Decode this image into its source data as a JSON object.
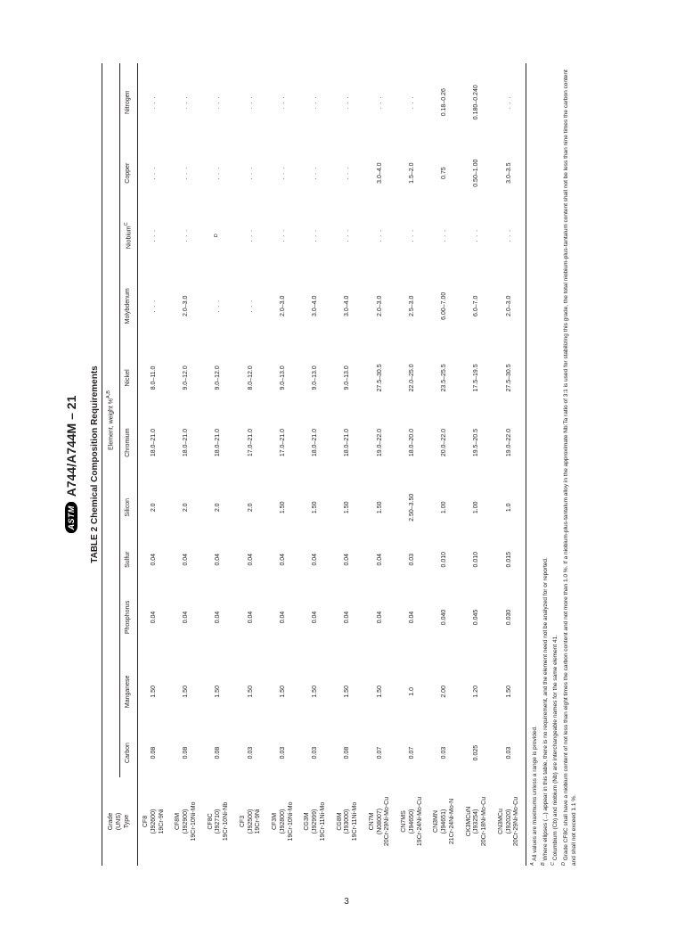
{
  "standard": "A744/A744M – 21",
  "table_title": "TABLE 2 Chemical Composition Requirements",
  "grade_header": "Grade\n(UNS)\nType",
  "element_header": "Element, weight %",
  "element_header_sup": "A,B",
  "cols": [
    "Carbon",
    "Manganese",
    "Phosphorus",
    "Sulfur",
    "Silicon",
    "Chromium",
    "Nickel",
    "Molybdenum",
    "Niobium",
    "Copper",
    "Nitrogen"
  ],
  "niobium_sup": "C",
  "ellipsis": ". . .",
  "rows": [
    {
      "code": "CF8",
      "uns": "(J92600)",
      "type": "19Cr-9Ni",
      "v": [
        "0.08",
        "1.50",
        "0.04",
        "0.04",
        "2.0",
        "18.0–21.0",
        "8.0–11.0",
        ". . .",
        ". . .",
        ". . .",
        ". . ."
      ]
    },
    {
      "code": "CF8M",
      "uns": "(J92900)",
      "type": "19Cr-10Ni-Mo",
      "v": [
        "0.08",
        "1.50",
        "0.04",
        "0.04",
        "2.0",
        "18.0–21.0",
        "9.0–12.0",
        "2.0–3.0",
        ". . .",
        ". . .",
        ". . ."
      ]
    },
    {
      "code": "CF8C",
      "uns": "(J92710)",
      "type": "19Cr-10Ni-Nb",
      "v": [
        "0.08",
        "1.50",
        "0.04",
        "0.04",
        "2.0",
        "18.0–21.0",
        "9.0–12.0",
        ". . .",
        "D",
        ". . .",
        ". . ."
      ]
    },
    {
      "code": "CF3",
      "uns": "(J92500)",
      "type": "19Cr-9Ni",
      "v": [
        "0.03",
        "1.50",
        "0.04",
        "0.04",
        "2.0",
        "17.0–21.0",
        "8.0–12.0",
        ". . .",
        ". . .",
        ". . .",
        ". . ."
      ]
    },
    {
      "code": "CF3M",
      "uns": "(J92800)",
      "type": "19Cr-10Ni-Mo",
      "v": [
        "0.03",
        "1.50",
        "0.04",
        "0.04",
        "1.50",
        "17.0–21.0",
        "9.0–13.0",
        "2.0–3.0",
        ". . .",
        ". . .",
        ". . ."
      ]
    },
    {
      "code": "CG3M",
      "uns": "(J92999)",
      "type": "19Cr-11Ni-Mo",
      "v": [
        "0.03",
        "1.50",
        "0.04",
        "0.04",
        "1.50",
        "18.0–21.0",
        "9.0–13.0",
        "3.0–4.0",
        ". . .",
        ". . .",
        ". . ."
      ]
    },
    {
      "code": "CG8M",
      "uns": "(J93000)",
      "type": "19Cr-11Ni-Mo",
      "v": [
        "0.08",
        "1.50",
        "0.04",
        "0.04",
        "1.50",
        "18.0–21.0",
        "9.0–13.0",
        "3.0–4.0",
        ". . .",
        ". . .",
        ". . ."
      ]
    },
    {
      "code": "CN7M",
      "uns": "(N08007)",
      "type": "20Cr-29Ni-Mo-Cu",
      "v": [
        "0.07",
        "1.50",
        "0.04",
        "0.04",
        "1.50",
        "19.0–22.0",
        "27.5–30.5",
        "2.0–3.0",
        ". . .",
        "3.0–4.0",
        ". . ."
      ]
    },
    {
      "code": "CN7MS",
      "uns": "(J94650)",
      "type": "19Cr-24Ni-Mo-Cu",
      "v": [
        "0.07",
        "1.0",
        "0.04",
        "0.03",
        "2.50–3.50",
        "18.0–20.0",
        "22.0–25.0",
        "2.5–3.0",
        ". . .",
        "1.5–2.0",
        ". . ."
      ]
    },
    {
      "code": "CN3MN",
      "uns": "(J94651)",
      "type": "21Cr-24Ni-Mo-N",
      "v": [
        "0.03",
        "2.00",
        "0.040",
        "0.010",
        "1.00",
        "20.0–22.0",
        "23.5–25.5",
        "6.00–7.00",
        ". . .",
        "0.75",
        "0.18–0.26"
      ]
    },
    {
      "code": "CK3MCuN",
      "uns": "(J93254)",
      "type": "20Cr-18Ni-Mo-Cu",
      "v": [
        "0.025",
        "1.20",
        "0.045",
        "0.010",
        "1.00",
        "19.5–20.5",
        "17.5–19.5",
        "6.0–7.0",
        ". . .",
        "0.50–1.00",
        "0.180–0.240"
      ]
    },
    {
      "code": "CN3MCu",
      "uns": "(J92020)",
      "type": "20Cr-29Ni-Mo-Cu",
      "v": [
        "0.03",
        "1.50",
        "0.030",
        "0.015",
        "1.0",
        "19.0–22.0",
        "27.5–30.5",
        "2.0–3.0",
        ". . .",
        "3.0–3.5",
        ". . ."
      ]
    }
  ],
  "footnotes": {
    "A": "All values are maximums unless a range is provided.",
    "B": "Where ellipses (...) appear in this table, there is no requirement, and the element need not be analyzed for or reported.",
    "C": "Columbium (Cb) and niobium (Nb) are interchangeable names for the same element 41.",
    "D": "Grade CF8C shall have a niobium content of not less than eight times the carbon content and not more than 1.0 %. If a niobium-plus-tantalum alloy in the approximate Nb:Ta ratio of 3:1 is used for stabilizing this grade, the total niobium-plus-tantalum content shall not be less than nine times the carbon content and shall not exceed 1.1 %."
  },
  "page_number": "3",
  "style": {
    "font_sizes": {
      "title": 10,
      "table": 7,
      "footnotes": 6.5,
      "header_std": 14
    },
    "colors": {
      "text": "#231f20",
      "rule": "#231f20",
      "bg": "#ffffff"
    }
  }
}
